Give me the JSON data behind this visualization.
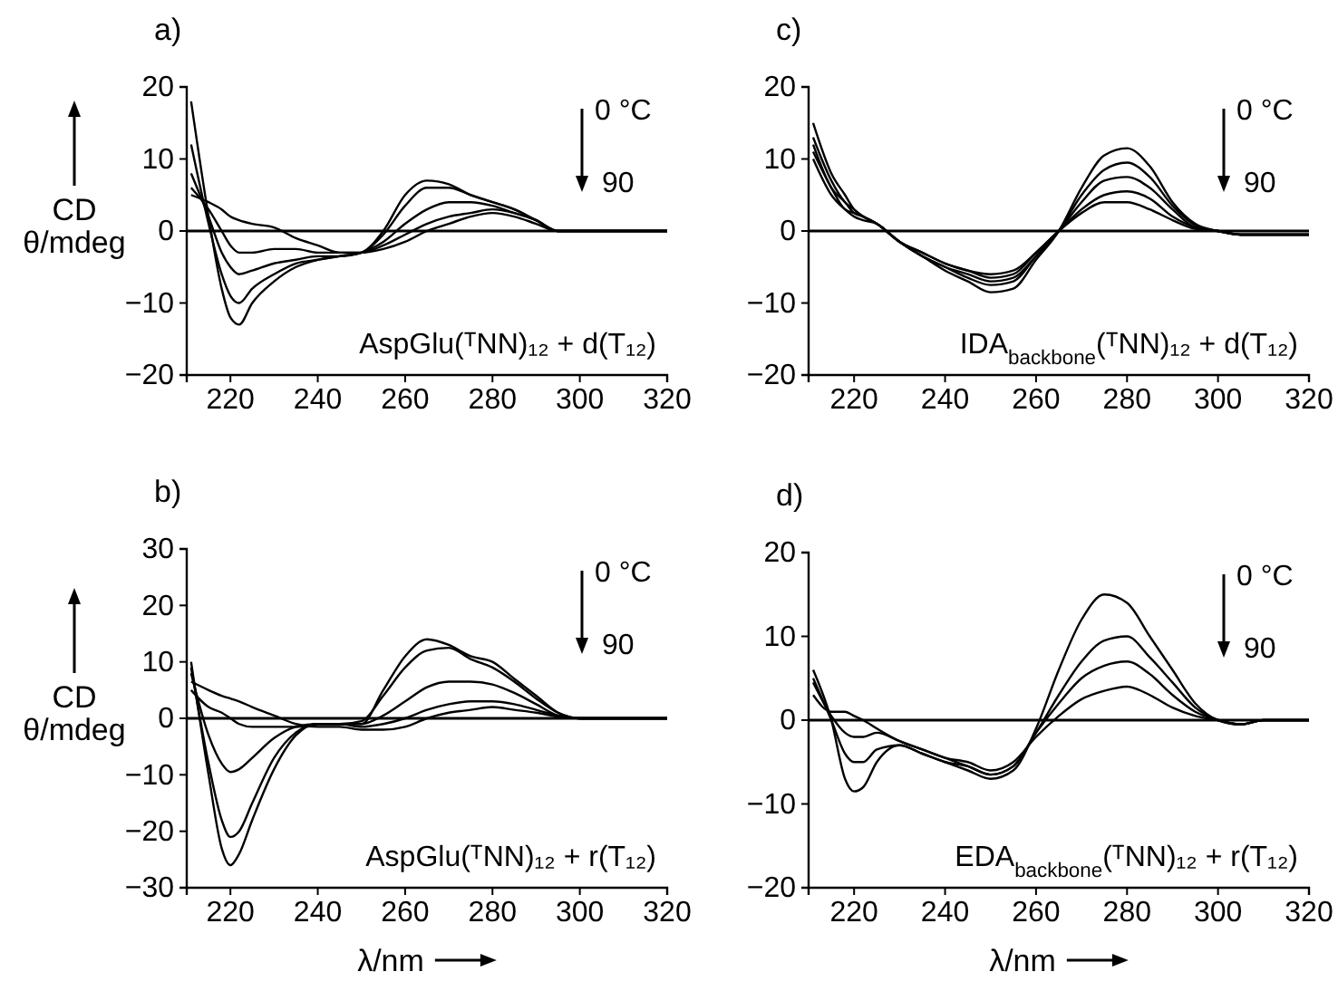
{
  "chart_data": [
    {
      "type": "line",
      "title": "a)",
      "ylabel": "CD θ/mdeg",
      "annotations": [
        "AspGlu(ᵀNN)₁₂ + d(T₁₂)",
        "0 °C",
        "90"
      ],
      "xlim": [
        210,
        320
      ],
      "xticks": [
        220,
        240,
        260,
        280,
        300,
        320
      ],
      "ylim": [
        -20,
        20
      ],
      "yticks": [
        -20,
        -10,
        0,
        10,
        20
      ],
      "ref_lines": [
        {
          "axis": "y",
          "value": 0
        }
      ],
      "line_style": "solid",
      "marker": "none",
      "grid": false,
      "x": [
        211,
        215,
        218,
        220,
        222,
        225,
        230,
        235,
        240,
        245,
        250,
        255,
        260,
        265,
        270,
        275,
        280,
        285,
        290,
        295,
        300,
        305,
        310,
        320
      ],
      "series": [
        {
          "color": "#000000",
          "values": [
            18,
            2,
            -8,
            -12,
            -13,
            -10,
            -7,
            -5,
            -4,
            -3.5,
            -3,
            0,
            5,
            7,
            6.5,
            5,
            4,
            3,
            1.5,
            0,
            0,
            0,
            0,
            0
          ]
        },
        {
          "color": "#000000",
          "values": [
            12,
            1,
            -6,
            -9,
            -10,
            -8,
            -6,
            -4.5,
            -4,
            -3.5,
            -3,
            -0.5,
            3.5,
            6,
            6,
            5,
            4,
            3,
            1.5,
            0,
            0,
            0,
            0,
            0
          ]
        },
        {
          "color": "#000000",
          "values": [
            8,
            2,
            -3,
            -5,
            -6,
            -5.5,
            -4.5,
            -4,
            -3.5,
            -3.5,
            -3,
            -1.5,
            1,
            3,
            4,
            4,
            3.5,
            2.5,
            1.5,
            0,
            0,
            0,
            0,
            0
          ]
        },
        {
          "color": "#000000",
          "values": [
            6,
            3,
            0,
            -2,
            -3,
            -3,
            -2.5,
            -2.5,
            -3,
            -3,
            -3,
            -2,
            -0.5,
            1,
            2,
            2.5,
            3,
            2.5,
            1.5,
            0,
            0,
            0,
            0,
            0
          ]
        },
        {
          "color": "#000000",
          "values": [
            5,
            4,
            3,
            2,
            1.5,
            1,
            0.5,
            -1,
            -2,
            -3,
            -3,
            -2.5,
            -1.5,
            0,
            1,
            2,
            2.5,
            2,
            1,
            0,
            0,
            0,
            0,
            0
          ]
        }
      ]
    },
    {
      "type": "line",
      "title": "c)",
      "annotations": [
        "IDA$_{backbone}$(ᵀNN)₁₂ + d(T₁₂)",
        "0 °C",
        "90"
      ],
      "xlim": [
        210,
        320
      ],
      "xticks": [
        220,
        240,
        260,
        280,
        300,
        320
      ],
      "ylim": [
        -20,
        20
      ],
      "yticks": [
        -20,
        -10,
        0,
        10,
        20
      ],
      "ref_lines": [
        {
          "axis": "y",
          "value": 0
        }
      ],
      "line_style": "solid",
      "marker": "none",
      "grid": false,
      "x": [
        211,
        215,
        218,
        220,
        222,
        225,
        230,
        235,
        240,
        245,
        250,
        255,
        260,
        265,
        270,
        275,
        280,
        285,
        290,
        295,
        300,
        305,
        310,
        320
      ],
      "series": [
        {
          "color": "#000000",
          "values": [
            15,
            8,
            5,
            3,
            2,
            1,
            -1.5,
            -3.5,
            -5.5,
            -7,
            -8.5,
            -8,
            -4,
            0,
            6,
            10.5,
            11.5,
            9,
            4,
            1,
            0,
            -0.5,
            -0.5,
            -0.5
          ]
        },
        {
          "color": "#000000",
          "values": [
            13,
            7,
            4,
            3,
            2,
            1,
            -1.5,
            -3.5,
            -5,
            -6.5,
            -7.5,
            -7,
            -3.5,
            0,
            5,
            8.5,
            9.5,
            7.5,
            3.5,
            0.8,
            0,
            -0.5,
            -0.5,
            -0.5
          ]
        },
        {
          "color": "#000000",
          "values": [
            12,
            6,
            4,
            2.5,
            2,
            1,
            -1.5,
            -3.5,
            -5,
            -6,
            -7,
            -6.5,
            -3.5,
            0,
            4,
            7,
            7.5,
            6,
            3,
            0.5,
            0,
            -0.5,
            -0.5,
            -0.5
          ]
        },
        {
          "color": "#000000",
          "values": [
            11,
            6,
            3,
            2.5,
            2,
            1,
            -1.5,
            -3,
            -4.5,
            -5.5,
            -6.5,
            -6,
            -3,
            0,
            3,
            5,
            5.5,
            4.5,
            2,
            0.5,
            0,
            -0.5,
            -0.5,
            -0.5
          ]
        },
        {
          "color": "#000000",
          "values": [
            10,
            5,
            3,
            2,
            1.5,
            1,
            -1.5,
            -3,
            -4.5,
            -5.5,
            -6,
            -5.5,
            -3,
            0,
            2.5,
            4,
            4,
            3,
            1.5,
            0.3,
            0,
            -0.5,
            -0.5,
            -0.5
          ]
        }
      ]
    },
    {
      "type": "line",
      "title": "b)",
      "xlabel": "λ/nm",
      "ylabel": "CD θ/mdeg",
      "annotations": [
        "AspGlu(ᵀNN)₁₂ + r(T₁₂)",
        "0 °C",
        "90"
      ],
      "xlim": [
        210,
        320
      ],
      "xticks": [
        220,
        240,
        260,
        280,
        300,
        320
      ],
      "ylim": [
        -30,
        30
      ],
      "yticks": [
        -30,
        -20,
        -10,
        0,
        10,
        20,
        30
      ],
      "ref_lines": [
        {
          "axis": "y",
          "value": 0
        }
      ],
      "line_style": "solid",
      "marker": "none",
      "grid": false,
      "x": [
        211,
        215,
        218,
        220,
        222,
        225,
        230,
        235,
        240,
        245,
        250,
        255,
        260,
        265,
        270,
        275,
        280,
        285,
        290,
        295,
        300,
        305,
        310,
        320
      ],
      "series": [
        {
          "color": "#000000",
          "values": [
            10,
            -10,
            -23,
            -26,
            -24,
            -18,
            -9,
            -3,
            -1,
            -1,
            -1,
            5,
            11,
            14,
            13,
            11,
            10,
            7,
            4,
            1,
            0,
            0,
            0,
            0
          ]
        },
        {
          "color": "#000000",
          "values": [
            9,
            -8,
            -18,
            -21,
            -20,
            -15,
            -7,
            -2.5,
            -1,
            -1,
            -0.5,
            4,
            9,
            12,
            12.5,
            10.5,
            9,
            6.5,
            3.5,
            1,
            0,
            0,
            0,
            0
          ]
        },
        {
          "color": "#000000",
          "values": [
            8,
            -3,
            -8,
            -9.5,
            -9,
            -7,
            -3.5,
            -1.5,
            -1,
            -1,
            -1,
            0.5,
            3,
            5.5,
            6.5,
            6.5,
            6,
            4.5,
            2.5,
            0.5,
            0,
            0,
            0,
            0
          ]
        },
        {
          "color": "#000000",
          "values": [
            5,
            2,
            1,
            0,
            -1,
            -1.5,
            -1.5,
            -1.5,
            -1,
            -1,
            -1.5,
            -1,
            0,
            1.5,
            2.5,
            3,
            3,
            2.5,
            1.5,
            0.5,
            0,
            0,
            0,
            0
          ]
        },
        {
          "color": "#000000",
          "values": [
            6.5,
            5,
            4,
            3.5,
            3,
            2,
            0.5,
            -1,
            -1.5,
            -1.5,
            -2,
            -2,
            -1.5,
            0,
            1,
            1.5,
            2,
            1.5,
            1,
            0.3,
            0,
            0,
            0,
            0
          ]
        }
      ]
    },
    {
      "type": "line",
      "title": "d)",
      "xlabel": "λ/nm",
      "annotations": [
        "EDA$_{backbone}$(ᵀNN)₁₂ + r(T₁₂)",
        "0 °C",
        "90"
      ],
      "xlim": [
        210,
        320
      ],
      "xticks": [
        220,
        240,
        260,
        280,
        300,
        320
      ],
      "ylim": [
        -20,
        20
      ],
      "yticks": [
        -20,
        -10,
        0,
        10,
        20
      ],
      "ref_lines": [
        {
          "axis": "y",
          "value": 0
        }
      ],
      "line_style": "solid",
      "marker": "none",
      "grid": false,
      "x": [
        211,
        215,
        218,
        220,
        222,
        225,
        230,
        235,
        240,
        245,
        250,
        255,
        260,
        265,
        270,
        275,
        280,
        285,
        290,
        295,
        300,
        305,
        310,
        320
      ],
      "series": [
        {
          "color": "#000000",
          "values": [
            6,
            0,
            -7,
            -8.5,
            -8,
            -5,
            -3,
            -4,
            -5,
            -6,
            -7,
            -6,
            -1,
            6,
            12,
            15,
            14,
            10,
            6,
            2,
            0,
            -0.5,
            0,
            0
          ]
        },
        {
          "color": "#000000",
          "values": [
            5,
            0,
            -4,
            -5,
            -5,
            -3.5,
            -3,
            -4,
            -5,
            -5.5,
            -6.5,
            -5.5,
            -1.5,
            3,
            7,
            9.5,
            10,
            7.5,
            4.5,
            1.5,
            0,
            -0.5,
            0,
            0
          ]
        },
        {
          "color": "#000000",
          "values": [
            4.5,
            0.5,
            -1.5,
            -2,
            -2,
            -1.5,
            -2.5,
            -3.5,
            -4.5,
            -5.5,
            -6.5,
            -5.5,
            -1.5,
            2,
            5,
            6.5,
            7,
            5.5,
            3,
            1,
            0,
            -0.5,
            0,
            0
          ]
        },
        {
          "color": "#000000",
          "values": [
            3,
            1,
            1,
            0.5,
            0,
            -1,
            -2.5,
            -3.5,
            -4.5,
            -5,
            -6,
            -5,
            -2,
            0.5,
            2.5,
            3.5,
            4,
            3,
            1.5,
            0.5,
            0,
            -0.5,
            0,
            0
          ]
        }
      ]
    }
  ]
}
